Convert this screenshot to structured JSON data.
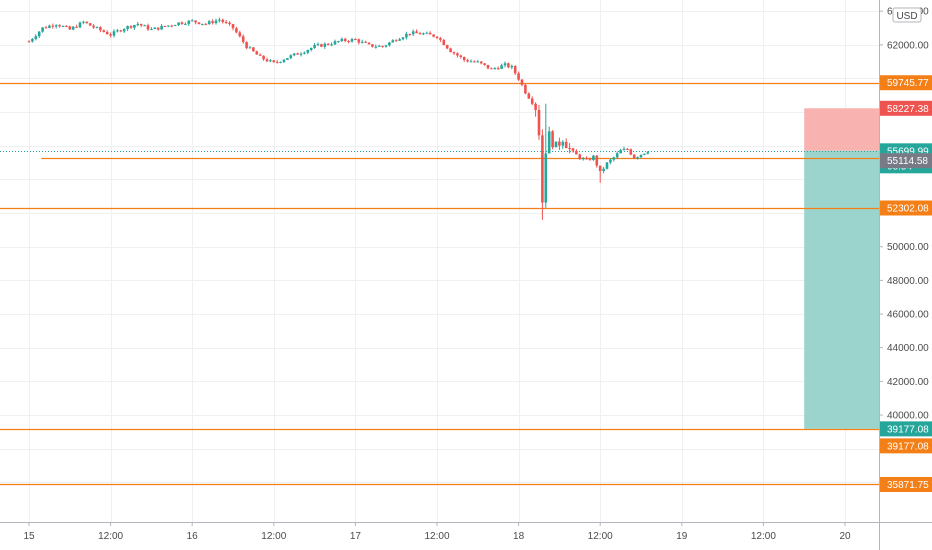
{
  "chart_data": {
    "type": "candlestick",
    "currency": "USD",
    "y_axis": {
      "ticks": [
        {
          "label": "64000.00",
          "value": 64000
        },
        {
          "label": "62000.00",
          "value": 62000
        },
        {
          "label": "50000.00",
          "value": 50000
        },
        {
          "label": "48000.00",
          "value": 48000
        },
        {
          "label": "46000.00",
          "value": 46000
        },
        {
          "label": "44000.00",
          "value": 44000
        },
        {
          "label": "42000.00",
          "value": 42000
        },
        {
          "label": "40000.00",
          "value": 40000
        }
      ]
    },
    "x_axis": {
      "ticks": [
        {
          "label": "15",
          "t": 0
        },
        {
          "label": "12:00",
          "t": 12
        },
        {
          "label": "16",
          "t": 24
        },
        {
          "label": "12:00",
          "t": 36
        },
        {
          "label": "17",
          "t": 48
        },
        {
          "label": "12:00",
          "t": 60
        },
        {
          "label": "18",
          "t": 72
        },
        {
          "label": "12:00",
          "t": 84
        },
        {
          "label": "19",
          "t": 96
        },
        {
          "label": "12:00",
          "t": 108
        },
        {
          "label": "20",
          "t": 120
        }
      ]
    },
    "price_lines": [
      {
        "label": "59745.77",
        "value": 59745.77,
        "color": "#f57f17"
      },
      {
        "label": "55265.27",
        "value": 55265.27,
        "color": "#f57f17",
        "t_start": 1.8
      },
      {
        "label": "52302.08",
        "value": 52302.08,
        "color": "#f57f17"
      },
      {
        "label": "39177.08",
        "value": 39177.08,
        "color": "#f57f17"
      },
      {
        "label": "35871.75",
        "value": 35871.75,
        "color": "#f57f17"
      }
    ],
    "price_labels": [
      {
        "label": "58227.38",
        "value": 58227.38,
        "color": "#ef5350"
      },
      {
        "label": "55699.99",
        "value": 55699.99,
        "color": "#26a69a"
      },
      {
        "label": "08:54",
        "value": 55699.99,
        "color": "#26a69a",
        "sub": true
      },
      {
        "label": "55114.58",
        "value": 55114.58,
        "color": "#787b86"
      },
      {
        "label": "39177.08",
        "value": 39177.08,
        "color": "#26a69a"
      }
    ],
    "current_price": 55699.99,
    "position": {
      "type": "short",
      "entry": 55699.99,
      "stop": 58227.38,
      "target": 39177.08,
      "t_start": 114,
      "t_end": 126,
      "stop_color": "#f8b3b0",
      "target_color": "#9ad4cc"
    },
    "candle_colors": {
      "up": "#26a69a",
      "down": "#ef5350"
    },
    "price_path": [
      [
        0,
        62200
      ],
      [
        2,
        63000
      ],
      [
        4,
        63250
      ],
      [
        6,
        62900
      ],
      [
        8,
        63350
      ],
      [
        10,
        62950
      ],
      [
        12,
        62600
      ],
      [
        14,
        63000
      ],
      [
        16,
        63250
      ],
      [
        18,
        62900
      ],
      [
        20,
        63100
      ],
      [
        22,
        63300
      ],
      [
        24,
        63400
      ],
      [
        26,
        63250
      ],
      [
        28,
        63500
      ],
      [
        30,
        63000
      ],
      [
        32,
        61900
      ],
      [
        34,
        61250
      ],
      [
        36,
        60900
      ],
      [
        38,
        61250
      ],
      [
        40,
        61550
      ],
      [
        42,
        61900
      ],
      [
        44,
        62050
      ],
      [
        46,
        62250
      ],
      [
        48,
        62300
      ],
      [
        50,
        61950
      ],
      [
        52,
        61900
      ],
      [
        54,
        62350
      ],
      [
        56,
        62700
      ],
      [
        58,
        62650
      ],
      [
        60,
        62500
      ],
      [
        62,
        61650
      ],
      [
        64,
        61100
      ],
      [
        66,
        60950
      ],
      [
        68,
        60550
      ],
      [
        70,
        60800
      ],
      [
        71,
        60650
      ],
      [
        72,
        60000
      ],
      [
        73,
        59200
      ],
      [
        74.5,
        58300
      ],
      [
        75,
        56800
      ],
      [
        75.5,
        52700
      ],
      [
        76,
        55800
      ],
      [
        76.5,
        56600
      ],
      [
        77.5,
        55900
      ],
      [
        78.5,
        56500
      ],
      [
        79.5,
        55800
      ],
      [
        80,
        55600
      ],
      [
        81,
        55300
      ],
      [
        82,
        55100
      ],
      [
        83,
        55350
      ],
      [
        84,
        54400
      ],
      [
        85,
        54950
      ],
      [
        86,
        55300
      ],
      [
        87,
        55700
      ],
      [
        88,
        55800
      ],
      [
        89,
        55300
      ],
      [
        90,
        55500
      ],
      [
        91,
        55699.99
      ]
    ]
  }
}
